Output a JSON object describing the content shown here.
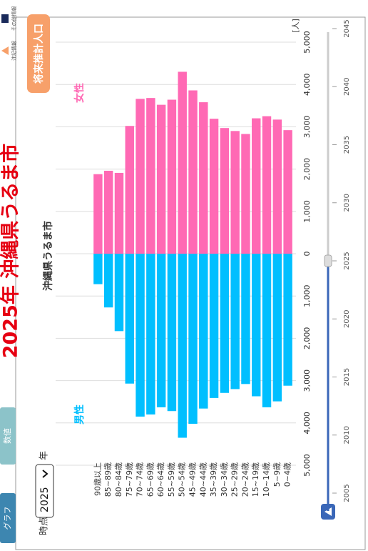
{
  "tabs": [
    "グラフ",
    "数値"
  ],
  "title": "2025年 沖縄県うるま市",
  "button": "将来推計人口",
  "icons": [
    "注記情報",
    "その他情報"
  ],
  "time": {
    "label": "時点：",
    "value": "2025",
    "unit": "年"
  },
  "slider": {
    "years": [
      "2005",
      "2010",
      "2015",
      "2020",
      "2025",
      "2030",
      "2035",
      "2040",
      "2045"
    ]
  },
  "chart_data": {
    "type": "population-pyramid",
    "title": "沖縄県うるま市",
    "unit": "[人]",
    "categories": [
      "90歳以上",
      "85~89歳",
      "80~84歳",
      "75~79歳",
      "70~74歳",
      "65~69歳",
      "60~64歳",
      "55~59歳",
      "50~54歳",
      "45~49歳",
      "40~44歳",
      "35~39歳",
      "30~34歳",
      "25~29歳",
      "20~24歳",
      "15~19歳",
      "10~14歳",
      "5~9歳",
      "0~4歳"
    ],
    "series": [
      {
        "name": "男性",
        "color": "#00bfff",
        "values": [
          720,
          1270,
          1830,
          3070,
          3850,
          3800,
          3630,
          3720,
          4350,
          4020,
          3660,
          3410,
          3290,
          3200,
          3080,
          3370,
          3630,
          3490,
          3120
        ]
      },
      {
        "name": "女性",
        "color": "#ff69b4",
        "values": [
          1880,
          1960,
          1910,
          3020,
          3660,
          3680,
          3520,
          3640,
          4300,
          3860,
          3580,
          3190,
          2970,
          2900,
          2830,
          3200,
          3250,
          3170,
          2920
        ]
      }
    ],
    "xlim": [
      0,
      5000
    ],
    "xticks": [
      0,
      {
        "value": 1000,
        "label": "1,000"
      },
      {
        "value": 2000,
        "label": "2,000"
      },
      {
        "value": 3000,
        "label": "3,000"
      },
      {
        "value": 4000,
        "label": "4,000"
      },
      {
        "value": 5000,
        "label": "5,000"
      }
    ],
    "grid": true
  }
}
